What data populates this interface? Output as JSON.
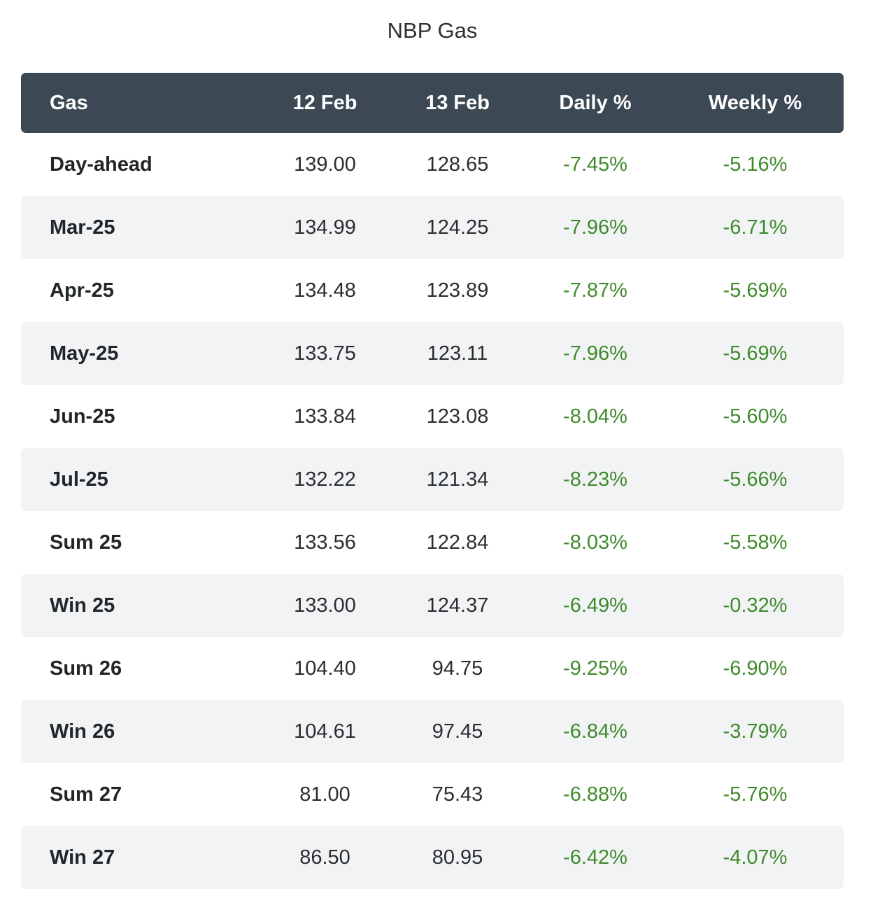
{
  "chart_data": {
    "type": "table",
    "title": "NBP Gas",
    "columns": [
      "Gas",
      "12 Feb",
      "13 Feb",
      "Daily %",
      "Weekly %"
    ],
    "rows": [
      [
        "Day-ahead",
        "139.00",
        "128.65",
        "-7.45%",
        "-5.16%"
      ],
      [
        "Mar-25",
        "134.99",
        "124.25",
        "-7.96%",
        "-6.71%"
      ],
      [
        "Apr-25",
        "134.48",
        "123.89",
        "-7.87%",
        "-5.69%"
      ],
      [
        "May-25",
        "133.75",
        "123.11",
        "-7.96%",
        "-5.69%"
      ],
      [
        "Jun-25",
        "133.84",
        "123.08",
        "-8.04%",
        "-5.60%"
      ],
      [
        "Jul-25",
        "132.22",
        "121.34",
        "-8.23%",
        "-5.66%"
      ],
      [
        "Sum 25",
        "133.56",
        "122.84",
        "-8.03%",
        "-5.58%"
      ],
      [
        "Win 25",
        "133.00",
        "124.37",
        "-6.49%",
        "-0.32%"
      ],
      [
        "Sum 26",
        "104.40",
        "94.75",
        "-9.25%",
        "-6.90%"
      ],
      [
        "Win 26",
        "104.61",
        "97.45",
        "-6.84%",
        "-3.79%"
      ],
      [
        "Sum 27",
        "81.00",
        "75.43",
        "-6.88%",
        "-5.76%"
      ],
      [
        "Win 27",
        "86.50",
        "80.95",
        "-6.42%",
        "-4.07%"
      ]
    ],
    "colors": {
      "header_background": "#3c4854",
      "header_text": "#ffffff",
      "stripe": "#f2f3f5",
      "negative_change": "#3f8a2c"
    }
  }
}
